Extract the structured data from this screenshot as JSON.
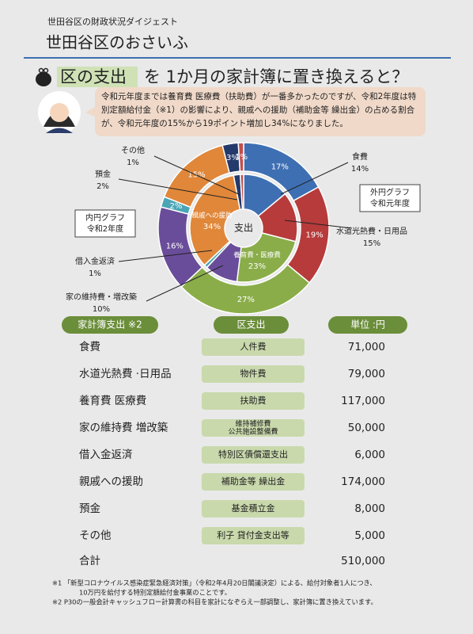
{
  "header": {
    "subtitle": "世田谷区の財政状況ダイジェスト",
    "title": "世田谷区のおさいふ"
  },
  "section_title": {
    "highlight": "区の支出",
    "rest": "を 1か月の家計簿に置き換えると？"
  },
  "speech": "令和元年度までは養育費 医療費（扶助費）が一番多かったのですが、令和2年度は特別定額給付金（※1）の影響により、親戚への援助（補助金等 繰出金）の占める割合が、令和元年度の15%から19ポイント増加し34%になりました。",
  "chart_data": {
    "type": "donut",
    "center_label": "支出",
    "categories": [
      "食費",
      "水道光熱費・日用品",
      "養育費・医療費",
      "家の維持費・増改築",
      "借入金返済",
      "親戚への援助",
      "預金",
      "その他"
    ],
    "colors": [
      "#3f6fb3",
      "#b73b3b",
      "#8aad4a",
      "#6a4d9a",
      "#4aa5b5",
      "#e0873a",
      "#243a6a",
      "#c0504d"
    ],
    "series": [
      {
        "name": "外円グラフ",
        "year": "令和元年度",
        "values": [
          17,
          19,
          27,
          16,
          2,
          15,
          3,
          1
        ],
        "value_labels": [
          "17%",
          "19%",
          "27%",
          "16%",
          "2%",
          "15%",
          "3%",
          "1%"
        ]
      },
      {
        "name": "内円グラフ",
        "year": "令和2年度",
        "values": [
          14,
          15,
          23,
          10,
          1,
          34,
          2,
          1
        ],
        "value_labels": [
          "14%",
          "15%",
          "23%",
          "10%",
          "1%",
          "34%",
          "2%",
          "1%"
        ]
      }
    ]
  },
  "table": {
    "header": [
      "家計簿支出 ※2",
      "区支出",
      "単位 :円"
    ],
    "rows": [
      [
        "食費",
        [
          "人件費"
        ],
        "71,000"
      ],
      [
        "水道光熱費 ·日用品",
        [
          "物件費"
        ],
        "79,000"
      ],
      [
        "養育費 医療費",
        [
          "扶助費"
        ],
        "117,000"
      ],
      [
        "家の維持費 増改築",
        [
          "維持補修費",
          "公共施設整備費"
        ],
        "50,000"
      ],
      [
        "借入金返済",
        [
          "特別区債償還支出"
        ],
        "6,000"
      ],
      [
        "親戚への援助",
        [
          "補助金等 繰出金"
        ],
        "174,000"
      ],
      [
        "預金",
        [
          "基金積立金"
        ],
        "8,000"
      ],
      [
        "その他",
        [
          "利子 貸付金支出等"
        ],
        "5,000"
      ]
    ],
    "total": [
      "合計",
      "510,000"
    ]
  },
  "notes": [
    "※1 「新型コロナウイルス感染症緊急経済対策」（令和2年4月20日閣議決定）による、給付対象者1人につき、",
    "10万円を給付する特別定額給付金事業のことです。",
    "※2 P30の一般会計キャッシュフロー計算書の科目を家計になぞらえ一部調整し、家計簿に置き換えています。"
  ]
}
